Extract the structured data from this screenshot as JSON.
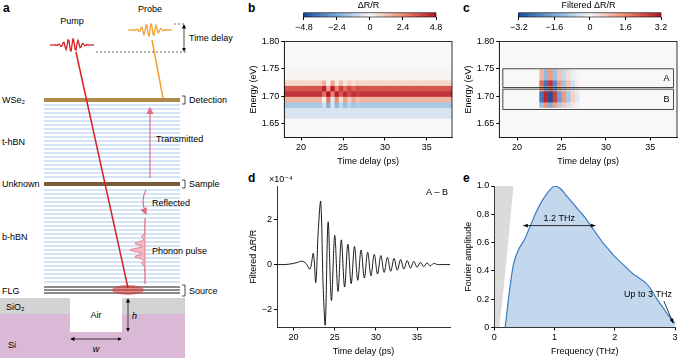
{
  "diagram": {
    "panel": "a",
    "beams": {
      "pump": "Pump",
      "probe": "Probe",
      "delay": "Time delay"
    },
    "layers": {
      "detector": "WSe₂",
      "top_spacer": "t-hBN",
      "sample": "Unknown",
      "bottom_spacer": "b-hBN",
      "source": "FLG",
      "oxide": "SiO₂",
      "gap": "Air",
      "substrate": "Si"
    },
    "roles": {
      "detection": "Detection",
      "sample": "Sample",
      "source": "Source"
    },
    "paths": {
      "transmitted": "Transmitted",
      "reflected": "Reflected",
      "pulse": "Phonon pulse"
    },
    "dimensions": {
      "height": "h",
      "width": "w"
    }
  },
  "chart_data": [
    {
      "panel": "b",
      "type": "heatmap",
      "x_label": "Time delay (ps)",
      "y_label": "Energy (eV)",
      "xlim": [
        18,
        38
      ],
      "xticks": [
        20,
        25,
        30,
        35
      ],
      "ylim": [
        1.625,
        1.8
      ],
      "yticks": [
        1.65,
        {
          "value": 1.7,
          "label": "1.70"
        },
        1.75,
        {
          "value": 1.8,
          "label": "1.80"
        }
      ],
      "x_bins": [
        18,
        20,
        21,
        22,
        22.5,
        23,
        23.5,
        24,
        24.5,
        25,
        25.5,
        26,
        26.5,
        27,
        27.5,
        28,
        30,
        32,
        34,
        36,
        38
      ],
      "y_bins": [
        1.625,
        1.66,
        1.68,
        1.69,
        1.7,
        1.71,
        1.72,
        1.73,
        1.75,
        1.8
      ],
      "cells": [
        [
          0,
          0,
          0,
          0,
          0,
          0,
          0,
          0,
          0,
          0,
          0,
          0,
          0,
          0,
          0,
          0,
          0,
          0,
          0,
          0
        ],
        [
          -0.6,
          -0.6,
          -0.6,
          -0.6,
          -0.6,
          -0.6,
          -0.6,
          -0.6,
          -0.6,
          -0.6,
          -0.6,
          -0.6,
          -0.6,
          -0.6,
          -0.6,
          -0.6,
          -0.6,
          -0.6,
          -0.6,
          -0.6
        ],
        [
          -1.5,
          -1.5,
          -1.5,
          -1.5,
          -0.8,
          -2.2,
          -0.6,
          -2.0,
          -1.0,
          -1.8,
          -1.2,
          -1.6,
          -1.4,
          -1.5,
          -1.5,
          -1.5,
          -1.5,
          -1.5,
          -1.5,
          -1.5
        ],
        [
          1.5,
          1.5,
          1.5,
          1.5,
          0.2,
          2.8,
          -0.5,
          2.4,
          0.6,
          2.0,
          1.0,
          1.8,
          1.3,
          1.5,
          1.5,
          1.5,
          1.5,
          1.5,
          1.5,
          1.5
        ],
        [
          4.2,
          4.2,
          4.2,
          4.2,
          3.0,
          4.8,
          2.6,
          4.6,
          3.4,
          4.4,
          3.8,
          4.3,
          4.0,
          4.2,
          4.2,
          4.2,
          4.2,
          4.2,
          4.2,
          4.2
        ],
        [
          3.5,
          3.5,
          3.5,
          3.5,
          4.5,
          2.0,
          4.6,
          2.6,
          4.0,
          3.0,
          3.8,
          3.2,
          3.6,
          3.5,
          3.5,
          3.5,
          3.5,
          3.5,
          3.5,
          3.5
        ],
        [
          0.8,
          0.8,
          0.8,
          0.8,
          1.6,
          0.2,
          1.8,
          0.4,
          1.3,
          0.5,
          1.0,
          0.6,
          0.9,
          0.8,
          0.8,
          0.8,
          0.8,
          0.8,
          0.8,
          0.8
        ],
        [
          0.1,
          0.1,
          0.1,
          0.1,
          0.1,
          0.1,
          0.1,
          0.1,
          0.1,
          0.1,
          0.1,
          0.1,
          0.1,
          0.1,
          0.1,
          0.1,
          0.1,
          0.1,
          0.1,
          0.1
        ],
        [
          0,
          0,
          0,
          0,
          0,
          0,
          0,
          0,
          0,
          0,
          0,
          0,
          0,
          0,
          0,
          0,
          0,
          0,
          0,
          0
        ]
      ],
      "colorbar": {
        "label": "ΔR/R",
        "range": [
          -4.8,
          4.8
        ],
        "ticks": [
          {
            "value": -4.8,
            "label": "−4.8"
          },
          {
            "value": -2.4,
            "label": "−2.4"
          },
          0,
          2.4,
          4.8
        ]
      }
    },
    {
      "panel": "c",
      "type": "heatmap",
      "x_label": "Time delay (ps)",
      "y_label": "Energy (eV)",
      "xlim": [
        18,
        38
      ],
      "xticks": [
        20,
        25,
        30,
        35
      ],
      "ylim": [
        1.625,
        1.8
      ],
      "yticks": [
        1.65,
        {
          "value": 1.7,
          "label": "1.70"
        },
        1.75,
        {
          "value": 1.8,
          "label": "1.80"
        }
      ],
      "x_bins": [
        18,
        20,
        21,
        22,
        22.5,
        23,
        23.5,
        24,
        24.5,
        25,
        25.5,
        26,
        26.5,
        27,
        27.5,
        28,
        30,
        32,
        34,
        36,
        38
      ],
      "y_bins": [
        1.625,
        1.66,
        1.68,
        1.69,
        1.7,
        1.71,
        1.72,
        1.73,
        1.75,
        1.8
      ],
      "cells": [
        [
          0,
          0,
          0,
          0,
          0,
          0,
          0,
          0,
          0,
          0,
          0,
          0,
          0,
          0,
          0,
          0,
          0,
          0,
          0,
          0
        ],
        [
          0,
          0,
          0,
          0,
          0,
          0,
          0,
          0,
          0,
          0,
          0,
          0,
          0,
          0,
          0,
          0,
          0,
          0,
          0,
          0
        ],
        [
          0,
          0,
          0,
          0,
          -1.2,
          1.5,
          -1.6,
          1.3,
          -0.9,
          0.7,
          -0.5,
          0.3,
          -0.1,
          0,
          0,
          0,
          0,
          0,
          0,
          0
        ],
        [
          0,
          0,
          0,
          0,
          -2.5,
          3.0,
          -3.2,
          2.6,
          -1.8,
          1.4,
          -1.0,
          0.6,
          -0.3,
          0,
          0,
          0,
          0,
          0,
          0,
          0
        ],
        [
          0,
          0,
          0,
          0,
          -2.5,
          3.0,
          -3.2,
          2.6,
          -1.8,
          1.4,
          -1.0,
          0.6,
          -0.3,
          0,
          0,
          0,
          0,
          0,
          0,
          0
        ],
        [
          0,
          0,
          0,
          0,
          1.4,
          -1.8,
          2.0,
          -1.6,
          1.1,
          -0.8,
          0.6,
          -0.4,
          0.2,
          0,
          0,
          0,
          0,
          0,
          0,
          0
        ],
        [
          0,
          0,
          0,
          0,
          2.0,
          -2.6,
          2.8,
          -2.2,
          1.5,
          -1.1,
          0.8,
          -0.5,
          0.2,
          0,
          0,
          0,
          0,
          0,
          0,
          0
        ],
        [
          0,
          0,
          0,
          0,
          1.0,
          -1.3,
          1.4,
          -1.1,
          0.8,
          -0.6,
          0.4,
          -0.2,
          0.1,
          0,
          0,
          0,
          0,
          0,
          0,
          0
        ],
        [
          0,
          0,
          0,
          0,
          0,
          0,
          0,
          0,
          0,
          0,
          0,
          0,
          0,
          0,
          0,
          0,
          0,
          0,
          0,
          0
        ]
      ],
      "regions": [
        {
          "label": "A",
          "xlim": [
            18.4,
            37.6
          ],
          "ylim": [
            1.716,
            1.75
          ]
        },
        {
          "label": "B",
          "xlim": [
            18.4,
            37.6
          ],
          "ylim": [
            1.676,
            1.713
          ]
        }
      ],
      "colorbar": {
        "label": "Filtered ΔR/R",
        "range": [
          -3.2,
          3.2
        ],
        "ticks": [
          {
            "value": -3.2,
            "label": "−3.2"
          },
          {
            "value": -1.6,
            "label": "−1.6"
          },
          0,
          1.6,
          3.2
        ]
      }
    },
    {
      "panel": "d",
      "type": "line",
      "x_label": "Time delay (ps)",
      "y_label": "Filtered ΔR/R",
      "annotation": "A – B",
      "multiplier": "×10⁻⁴",
      "color": "#000000",
      "xlim": [
        18,
        39
      ],
      "xticks": [
        20,
        25,
        30,
        35
      ],
      "ylim": [
        -2.8,
        3.5
      ],
      "yticks": [
        {
          "value": -2,
          "label": "−2"
        },
        0,
        2
      ],
      "x": [
        18,
        19,
        20,
        20.5,
        21,
        21.5,
        22,
        22.4,
        22.7,
        23,
        23.3,
        23.6,
        23.85,
        24.2,
        24.6,
        25,
        25.4,
        25.8,
        26.2,
        26.6,
        27,
        27.4,
        27.8,
        28.2,
        28.6,
        29,
        29.4,
        29.8,
        30.2,
        30.6,
        31,
        31.4,
        31.8,
        32.2,
        32.6,
        33,
        33.4,
        33.8,
        34.2,
        34.6,
        35,
        35.4,
        35.8,
        36.2,
        36.6,
        37,
        37.5,
        38,
        39
      ],
      "values": [
        0,
        0,
        0.05,
        0.1,
        0.15,
        0.05,
        -0.2,
        0.5,
        -0.8,
        1.5,
        2.8,
        -1.0,
        -2.7,
        1.9,
        -1.6,
        1.3,
        -1.2,
        1.1,
        -1.0,
        0.9,
        -0.85,
        0.8,
        -0.7,
        0.65,
        -0.6,
        0.55,
        -0.5,
        0.45,
        -0.42,
        0.4,
        -0.35,
        0.32,
        -0.3,
        0.27,
        -0.25,
        0.22,
        -0.2,
        0.18,
        -0.16,
        0.14,
        -0.12,
        0.1,
        -0.09,
        0.07,
        -0.06,
        0.05,
        0,
        0,
        0
      ]
    },
    {
      "panel": "e",
      "type": "line",
      "x_label": "Frequency (THz)",
      "y_label": "Fourier amplitude",
      "xlim": [
        0,
        3
      ],
      "xticks": [
        0,
        1,
        2,
        3
      ],
      "ylim": [
        0,
        1
      ],
      "yticks": [
        0,
        0.2,
        0.4,
        0.6,
        0.8,
        {
          "value": 1,
          "label": "1.0"
        }
      ],
      "series": [
        {
          "color": "#888888",
          "x": [
            0,
            0.08,
            0.32
          ],
          "values": [
            0,
            0,
            1
          ]
        },
        {
          "color": "#3b7dc4",
          "x": [
            0.18,
            0.25,
            0.32,
            0.4,
            0.5,
            0.6,
            0.7,
            0.8,
            0.9,
            1.0,
            1.1,
            1.2,
            1.3,
            1.4,
            1.5,
            1.6,
            1.7,
            1.8,
            1.9,
            2.0,
            2.1,
            2.2,
            2.3,
            2.4,
            2.5,
            2.6,
            2.7,
            2.8,
            2.9,
            3.0
          ],
          "values": [
            0,
            0.25,
            0.45,
            0.55,
            0.62,
            0.72,
            0.82,
            0.9,
            0.96,
            1.0,
            0.98,
            0.93,
            0.88,
            0.83,
            0.78,
            0.72,
            0.66,
            0.6,
            0.55,
            0.5,
            0.46,
            0.42,
            0.38,
            0.35,
            0.32,
            0.27,
            0.2,
            0.14,
            0.08,
            0.03
          ]
        }
      ],
      "annotations": [
        {
          "text": "1.2 THz",
          "x": [
            0.48,
            1.68
          ],
          "y": 0.72
        },
        {
          "text": "Up to 3 THz",
          "x": 2.55,
          "y": 0.2,
          "target": [
            2.97,
            0.03
          ]
        }
      ]
    }
  ]
}
